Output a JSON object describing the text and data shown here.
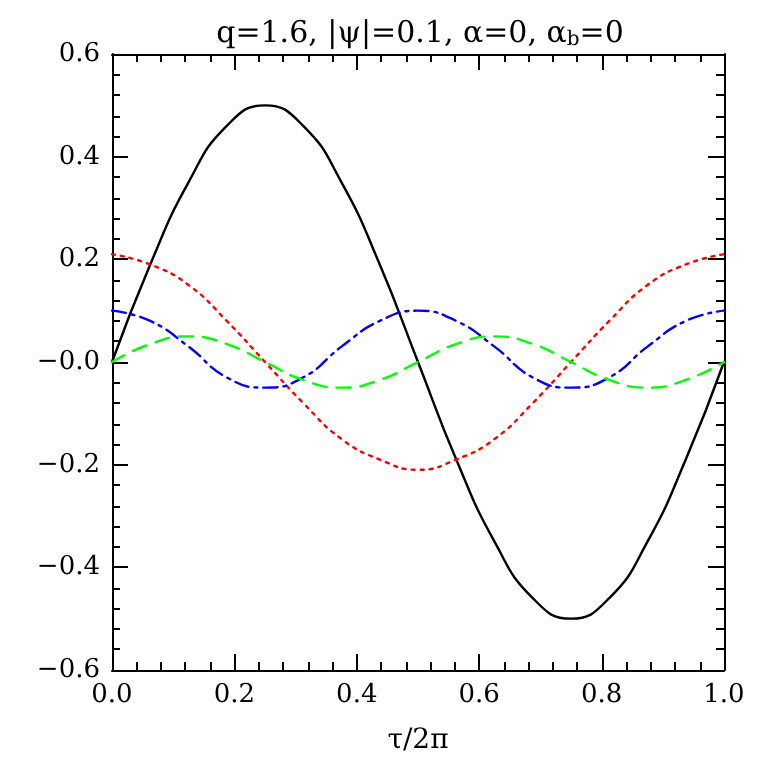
{
  "chart_data": {
    "type": "line",
    "title": "q=1.6, |ψ|=0.1, α=0, α$_{b}$=0",
    "xlabel": "τ/2π",
    "x": [
      0,
      0.0625,
      0.125,
      0.1875,
      0.25,
      0.3125,
      0.375,
      0.4375,
      0.5,
      0.5625,
      0.625,
      0.6875,
      0.75,
      0.8125,
      0.875,
      0.9375,
      1
    ],
    "series": [
      {
        "color": "#000000",
        "line_style": "solid",
        "values": [
          0,
          0.19,
          0.35,
          0.46,
          0.5,
          0.46,
          0.35,
          0.19,
          0,
          -0.19,
          -0.35,
          -0.46,
          -0.5,
          -0.46,
          -0.35,
          -0.19,
          0
        ]
      },
      {
        "color": "#ff0000",
        "line_style": "dotted",
        "values": [
          0.21,
          0.19,
          0.15,
          0.08,
          0,
          -0.08,
          -0.15,
          -0.19,
          -0.21,
          -0.19,
          -0.15,
          -0.08,
          0,
          0.08,
          0.15,
          0.19,
          0.21
        ]
      },
      {
        "color": "#0000ff",
        "line_style": "dashdot",
        "values": [
          0.1,
          0.08,
          0.03,
          -0.03,
          -0.05,
          -0.03,
          0.03,
          0.08,
          0.1,
          0.08,
          0.03,
          -0.03,
          -0.05,
          -0.03,
          0.03,
          0.08,
          0.1
        ]
      },
      {
        "color": "#00ff00",
        "line_style": "dashed",
        "values": [
          0,
          0.035,
          0.05,
          0.035,
          0,
          -0.035,
          -0.05,
          -0.035,
          0,
          0.035,
          0.05,
          0.035,
          0,
          -0.035,
          -0.05,
          -0.035,
          0
        ]
      }
    ],
    "xlim": [
      0,
      1
    ],
    "xticks": [
      {
        "value": 0,
        "label": "0.0"
      },
      {
        "value": 0.2,
        "label": "0.2"
      },
      {
        "value": 0.4,
        "label": "0.4"
      },
      {
        "value": 0.6,
        "label": "0.6"
      },
      {
        "value": 0.8,
        "label": "0.8"
      },
      {
        "value": 1,
        "label": "1.0"
      }
    ],
    "ylim": [
      -0.6,
      0.6
    ],
    "yticks": [
      {
        "value": -0.6,
        "label": "−0.6"
      },
      {
        "value": -0.4,
        "label": "−0.4"
      },
      {
        "value": -0.2,
        "label": "−0.2"
      },
      {
        "value": 0,
        "label": "−0.0"
      },
      {
        "value": 0.2,
        "label": "0.2"
      },
      {
        "value": 0.4,
        "label": "0.4"
      },
      {
        "value": 0.6,
        "label": "0.6"
      }
    ],
    "grid": false,
    "marker": "none"
  }
}
